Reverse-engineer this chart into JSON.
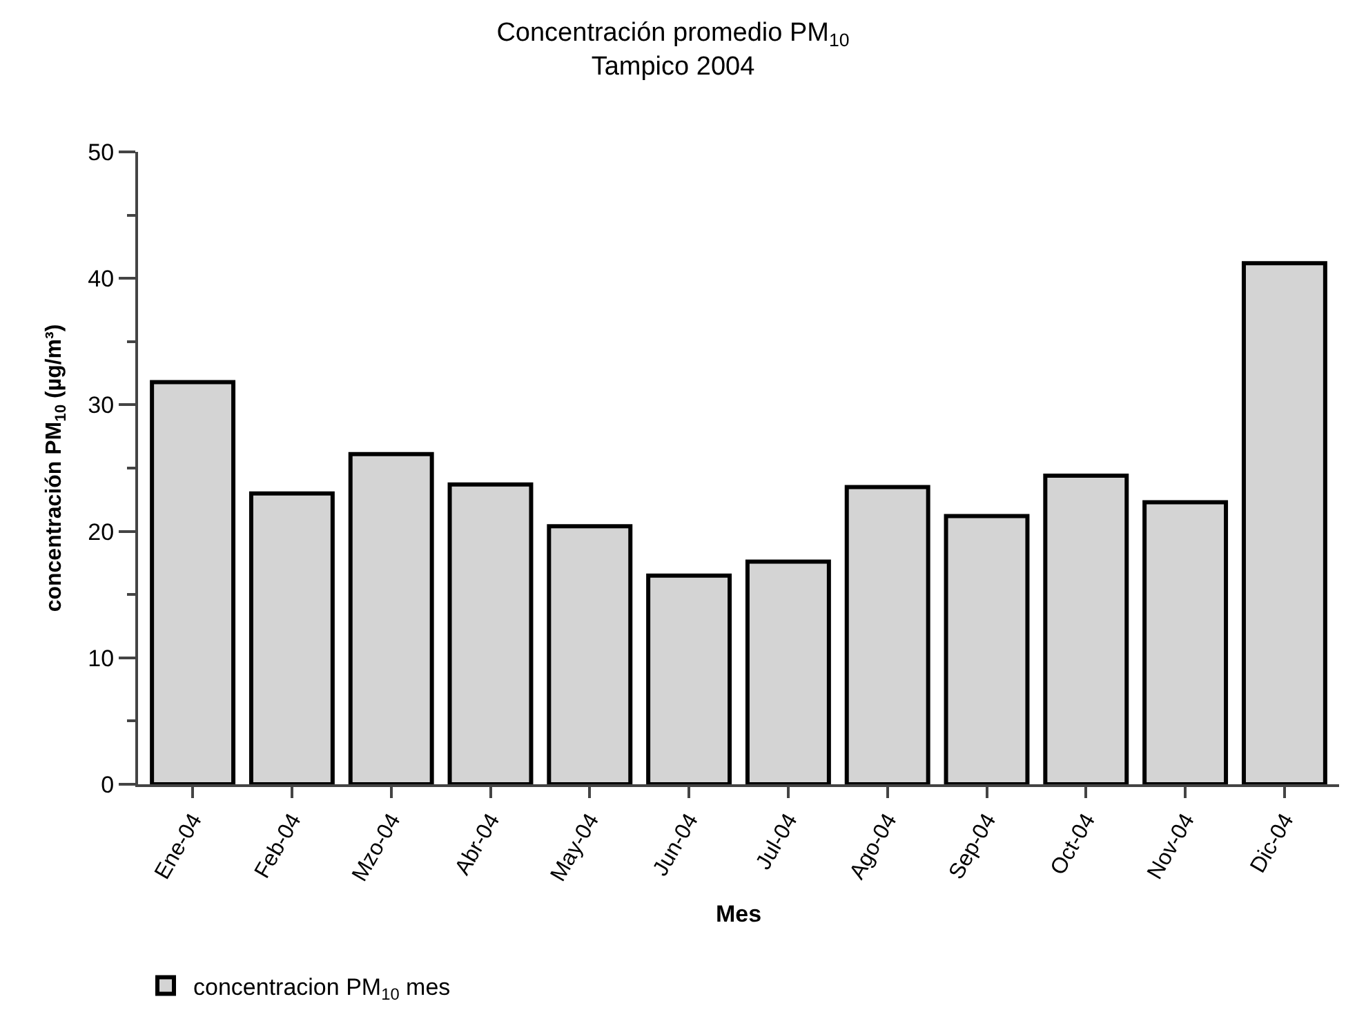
{
  "chart_data": {
    "type": "bar",
    "title": "Concentración promedio PM$_{10}$\nTampico 2004",
    "xlabel": "Mes",
    "ylabel": "concentración PM$_{10}$ (µg/m³)",
    "categories": [
      "Ene-04",
      "Feb-04",
      "Mzo-04",
      "Abr-04",
      "May-04",
      "Jun-04",
      "Jul-04",
      "Ago-04",
      "Sep-04",
      "Oct-04",
      "Nov-04",
      "Dic-04"
    ],
    "series": [
      {
        "name": "concentracion PM$_{10}$ mes",
        "color": "#d4d4d4",
        "values": [
          31.8,
          23.0,
          26.1,
          23.7,
          20.4,
          16.5,
          17.6,
          23.5,
          21.2,
          24.4,
          22.3,
          41.2
        ]
      }
    ],
    "ylim": [
      0,
      50
    ],
    "yticks": [
      0,
      10,
      20,
      30,
      40,
      50
    ],
    "legend": "bottom left"
  }
}
